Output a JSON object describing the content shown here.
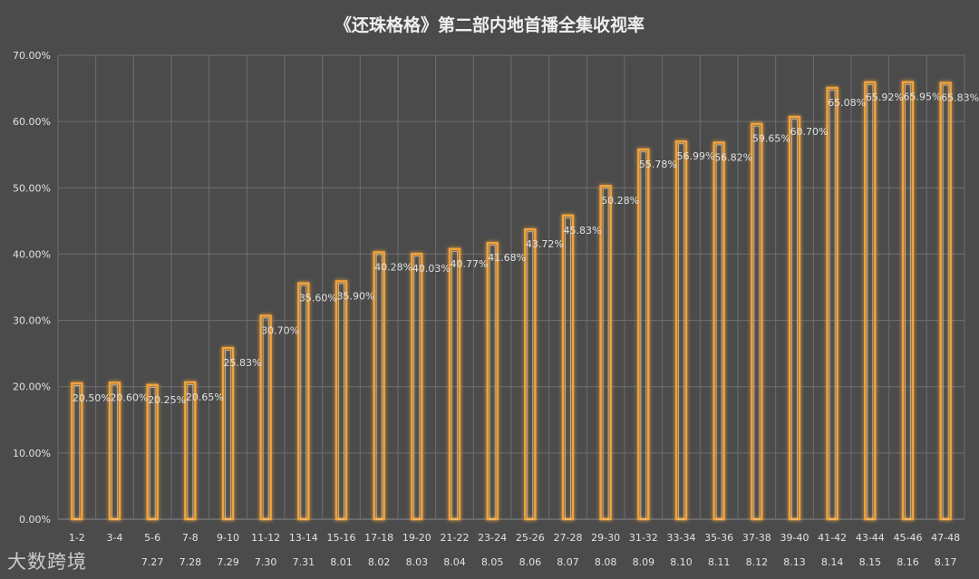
{
  "chart_data": {
    "type": "bar",
    "title": "《还珠格格》第二部内地首播全集收视率",
    "categories": [
      "1-2",
      "3-4",
      "5-6",
      "7-8",
      "9-10",
      "11-12",
      "13-14",
      "15-16",
      "17-18",
      "19-20",
      "21-22",
      "23-24",
      "25-26",
      "27-28",
      "29-30",
      "31-32",
      "33-34",
      "35-36",
      "37-38",
      "39-40",
      "41-42",
      "43-44",
      "45-46",
      "47-48"
    ],
    "dates": [
      "",
      "",
      "7.27",
      "7.28",
      "7.29",
      "7.30",
      "7.31",
      "8.01",
      "8.02",
      "8.03",
      "8.04",
      "8.05",
      "8.06",
      "8.07",
      "8.08",
      "8.09",
      "8.10",
      "8.11",
      "8.12",
      "8.13",
      "8.14",
      "8.15",
      "8.16",
      "8.17"
    ],
    "values": [
      20.5,
      20.6,
      20.25,
      20.65,
      25.83,
      30.7,
      35.6,
      35.9,
      40.28,
      40.03,
      40.77,
      41.68,
      43.72,
      45.83,
      50.28,
      55.78,
      56.99,
      56.82,
      59.65,
      60.7,
      65.08,
      65.92,
      65.95,
      65.83
    ],
    "value_labels": [
      "20.50%",
      "20.60%",
      "20.25%",
      "20.65%",
      "25.83%",
      "30.70%",
      "35.60%",
      "35.90%",
      "40.28%",
      "40.03%",
      "40.77%",
      "41.68%",
      "43.72%",
      "45.83%",
      "50.28%",
      "55.78%",
      "56.99%",
      "56.82%",
      "59.65%",
      "60.70%",
      "65.08%",
      "65.92%",
      "65.95%",
      "65.83%"
    ],
    "y_ticks": [
      "0.00%",
      "10.00%",
      "20.00%",
      "30.00%",
      "40.00%",
      "50.00%",
      "60.00%",
      "70.00%"
    ],
    "ylim": [
      0,
      70
    ],
    "grid": true,
    "colors": {
      "background": "#4b4b4b",
      "bar_edge": "#f2a33a",
      "bar_fill": "#fbe6c3",
      "text": "#e2e2e2",
      "grid": "#6e6e6e"
    }
  },
  "watermark": "大数跨境"
}
